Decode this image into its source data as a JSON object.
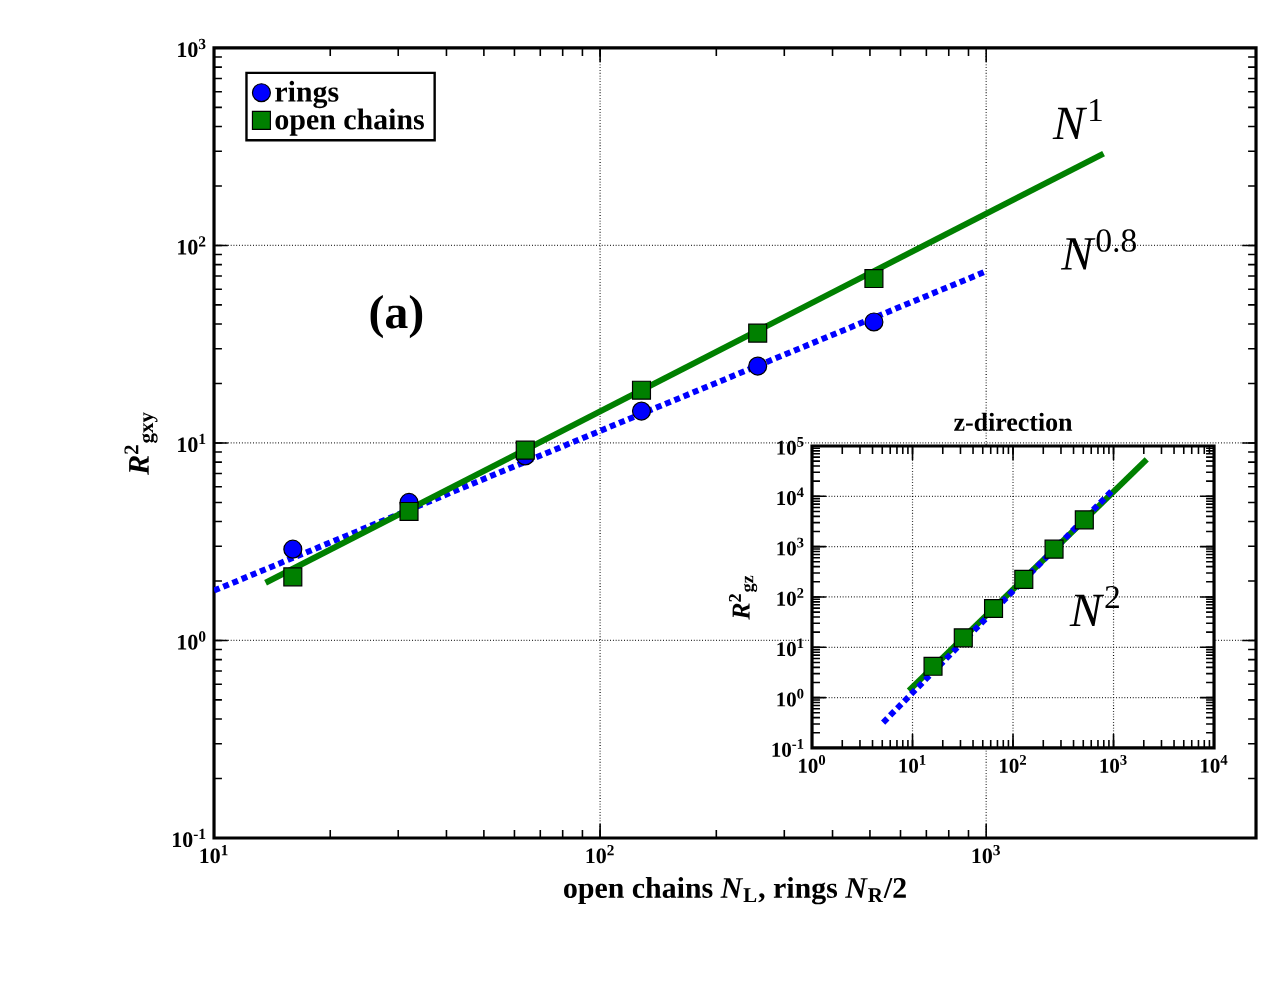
{
  "chart_data": [
    {
      "type": "scatter",
      "xlabel": "open chains *N*$_{L}$, rings *N*$_{R}$/2",
      "ylabel": "*R*$^{2}$$_{gxy}$",
      "log": "xy",
      "grid": true,
      "legend": "top left",
      "xlim": [
        10,
        5000
      ],
      "ylim": [
        0.1,
        1000
      ],
      "xticks": [
        {
          "value": 10,
          "label": "10$^{1}$"
        },
        {
          "value": 100,
          "label": "10$^{2}$"
        },
        {
          "value": 1000,
          "label": "10$^{3}$"
        }
      ],
      "yticks": [
        {
          "value": 0.1,
          "label": "10$^{-1}$"
        },
        {
          "value": 1,
          "label": "10$^{0}$"
        },
        {
          "value": 10,
          "label": "10$^{1}$"
        },
        {
          "value": 100,
          "label": "10$^{2}$"
        },
        {
          "value": 1000,
          "label": "10$^{3}$"
        }
      ],
      "series": [
        {
          "type": "line",
          "color": "#0000ff",
          "line_style": "dotted",
          "marker": "none",
          "x": [
            10,
            1000
          ],
          "values": [
            1.79,
            74
          ]
        },
        {
          "type": "line",
          "color": "#008000",
          "line_style": "solid",
          "marker": "none",
          "x": [
            13.6,
            2014
          ],
          "values": [
            1.96,
            292
          ]
        },
        {
          "name": "rings",
          "color": "#0000ff",
          "marker": "circle",
          "x": [
            16,
            32,
            64,
            128,
            256,
            512
          ],
          "values": [
            2.9,
            5.0,
            8.6,
            14.5,
            24.5,
            41
          ]
        },
        {
          "name": "open chains",
          "color": "#008000",
          "marker": "square",
          "x": [
            16,
            32,
            64,
            128,
            256,
            512
          ],
          "values": [
            2.1,
            4.5,
            9.2,
            18.5,
            36,
            68
          ]
        }
      ],
      "annotations": [
        "**(a)**",
        "*N*$^{1}$",
        "*N*$^{0.8}$"
      ]
    },
    {
      "type": "scatter",
      "title": "z-direction",
      "ylabel": "*R*$^{2}$$_{gz}$",
      "log": "xy",
      "grid": true,
      "xlim": [
        1,
        10000
      ],
      "ylim": [
        0.1,
        100000
      ],
      "xticks": [
        {
          "value": 1,
          "label": "10$^{0}$"
        },
        {
          "value": 10,
          "label": "10$^{1}$"
        },
        {
          "value": 100,
          "label": "10$^{2}$"
        },
        {
          "value": 1000,
          "label": "10$^{3}$"
        },
        {
          "value": 10000,
          "label": "10$^{4}$"
        }
      ],
      "yticks": [
        {
          "value": 0.1,
          "label": "10$^{-1}$"
        },
        {
          "value": 1,
          "label": "10$^{0}$"
        },
        {
          "value": 10,
          "label": "10$^{1}$"
        },
        {
          "value": 100,
          "label": "10$^{2}$"
        },
        {
          "value": 1000,
          "label": "10$^{3}$"
        },
        {
          "value": 10000,
          "label": "10$^{4}$"
        },
        {
          "value": 100000,
          "label": "10$^{5}$"
        }
      ],
      "series": [
        {
          "type": "line",
          "color": "#008000",
          "line_style": "solid",
          "marker": "none",
          "x": [
            9.2,
            2140
          ],
          "values": [
            1.38,
            54000
          ]
        },
        {
          "type": "line",
          "color": "#0000ff",
          "line_style": "dotted",
          "marker": "none",
          "x": [
            5.1,
            1000
          ],
          "values": [
            0.32,
            13800
          ]
        },
        {
          "color": "#008000",
          "marker": "square",
          "x": [
            16,
            32,
            64,
            128,
            256,
            512
          ],
          "values": [
            4.2,
            15.4,
            59,
            224,
            890,
            3400
          ]
        }
      ],
      "annotations": [
        "*N*$^{2}$"
      ]
    }
  ]
}
